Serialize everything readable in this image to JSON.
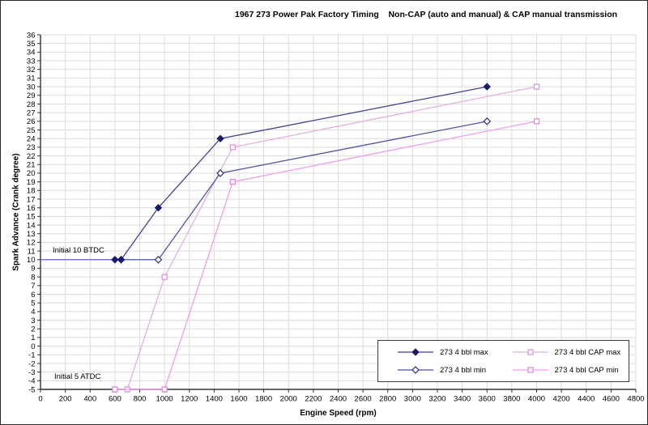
{
  "chart_data": {
    "type": "line",
    "title": "1967 273 Power Pak Factory Timing    Non-CAP (auto and manual) & CAP manual transmission",
    "xlabel": "Engine Speed (rpm)",
    "ylabel": "Spark Advance (Crank degree)",
    "xlim": [
      0,
      4800
    ],
    "ylim": [
      -5,
      36
    ],
    "grid": true,
    "legend_position": "bottom-right",
    "x_tick_labels": [
      0,
      200,
      400,
      600,
      800,
      1000,
      1200,
      1400,
      1600,
      1800,
      2000,
      2200,
      2400,
      2600,
      2800,
      3000,
      3200,
      3400,
      3600,
      3800,
      4000,
      4200,
      4400,
      4600,
      4800
    ],
    "y_tick_labels": [
      36,
      35,
      34,
      33,
      32,
      31,
      30,
      29,
      28,
      27,
      26,
      25,
      24,
      23,
      22,
      21,
      20,
      19,
      18,
      17,
      16,
      15,
      14,
      13,
      12,
      11,
      10,
      9,
      8,
      7,
      6,
      5,
      4,
      3,
      2,
      1,
      0,
      -1,
      -2,
      -3,
      -4,
      -5
    ],
    "colors": {
      "grid": "#dcdcdc",
      "axis": "#333333",
      "background": "#ffffff"
    },
    "series": [
      {
        "name": "273 4 bbl max",
        "marker": "diamond-filled",
        "color": "#42428e",
        "marker_color": "#1b1b6b",
        "points": [
          [
            600,
            10
          ],
          [
            650,
            10
          ],
          [
            950,
            16
          ],
          [
            1450,
            24
          ],
          [
            3600,
            30
          ]
        ]
      },
      {
        "name": "273 4 bbl min",
        "marker": "diamond-open",
        "color": "#5252a0",
        "marker_color": "#2a2a80",
        "points": [
          [
            650,
            10
          ],
          [
            950,
            10
          ],
          [
            1450,
            20
          ],
          [
            3600,
            26
          ]
        ]
      },
      {
        "name": "273 4 bbl CAP max",
        "marker": "square-open",
        "color": "#dfb2df",
        "marker_color": "#d98fd9",
        "points": [
          [
            600,
            -5
          ],
          [
            700,
            -5
          ],
          [
            1000,
            8
          ],
          [
            1550,
            23
          ],
          [
            4000,
            30
          ]
        ]
      },
      {
        "name": "273 4 bbl CAP min",
        "marker": "square-open",
        "color": "#ee9fe9",
        "marker_color": "#e080e0",
        "points": [
          [
            600,
            -5
          ],
          [
            1000,
            -5
          ],
          [
            1550,
            19
          ],
          [
            4000,
            26
          ]
        ]
      }
    ],
    "annotations": [
      {
        "text": "Initial 10 BTDC",
        "y": 10,
        "line_from_x": 0,
        "line_to_x": 600,
        "line_color": "#6a5acd"
      },
      {
        "text": "Initial 5 ATDC",
        "y": -5,
        "line_from_x": 0,
        "line_to_x": 600,
        "line_color": "#3a3a3a"
      }
    ]
  }
}
